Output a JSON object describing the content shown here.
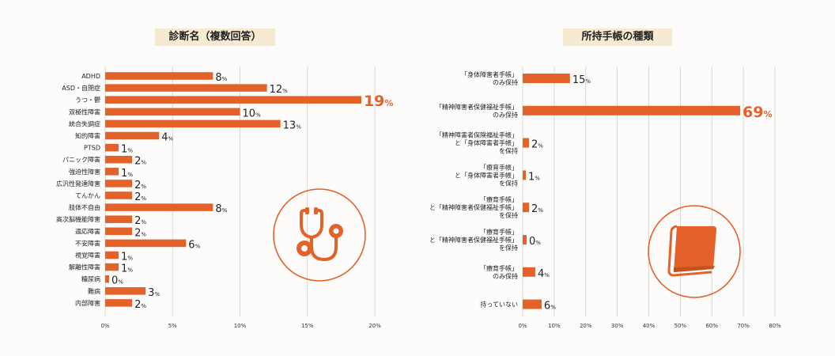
{
  "accent": "#e2622a",
  "chart_data": [
    {
      "type": "bar",
      "orientation": "horizontal",
      "title": "診断名（複数回答）",
      "categories": [
        "ADHD",
        "ASD・自閉症",
        "うつ・鬱",
        "双極性障害",
        "統合失調症",
        "知的障害",
        "PTSD",
        "パニック障害",
        "強迫性障害",
        "広汎性発達障害",
        "てんかん",
        "肢体不自由",
        "高次脳機能障害",
        "適応障害",
        "不安障害",
        "視覚障害",
        "解離性障害",
        "糖尿病",
        "難病",
        "内部障害"
      ],
      "values": [
        8,
        12,
        19,
        10,
        13,
        4,
        1,
        2,
        1,
        2,
        2,
        8,
        2,
        2,
        6,
        1,
        1,
        0,
        3,
        2
      ],
      "unit": "%",
      "xlim": [
        0,
        20
      ],
      "ticks": [
        "0%",
        "5%",
        "10%",
        "15%",
        "20%"
      ],
      "highlight_max": true,
      "grid": true,
      "icon": "stethoscope-icon"
    },
    {
      "type": "bar",
      "orientation": "horizontal",
      "title": "所持手帳の種類",
      "categories": [
        [
          "「身体障害者手帳」",
          "のみ保持"
        ],
        [
          "「精神障害者保健福祉手帳」",
          "のみ保持"
        ],
        [
          "「精神障害者保険福祉手帳」",
          "と「身体障害者手帳」",
          "を保持"
        ],
        [
          "「療育手帳」",
          "と「身体障害者手帳」",
          "を保持"
        ],
        [
          "「療育手帳」",
          "と「精神障害者保健福祉手帳」",
          "を保持"
        ],
        [
          "「療育手帳」",
          "と「精神障害者保健福祉手帳」",
          "を保持"
        ],
        [
          "「療育手帳」",
          "のみ保持"
        ],
        [
          "持っていない"
        ]
      ],
      "values": [
        15,
        69,
        2,
        1,
        2,
        0,
        4,
        6
      ],
      "unit": "%",
      "xlim": [
        0,
        80
      ],
      "ticks": [
        "0%",
        "10%",
        "20%",
        "30%",
        "40%",
        "50%",
        "60%",
        "70%",
        "80%"
      ],
      "highlight_max": true,
      "grid": true,
      "icon": "notebook-icon"
    }
  ]
}
